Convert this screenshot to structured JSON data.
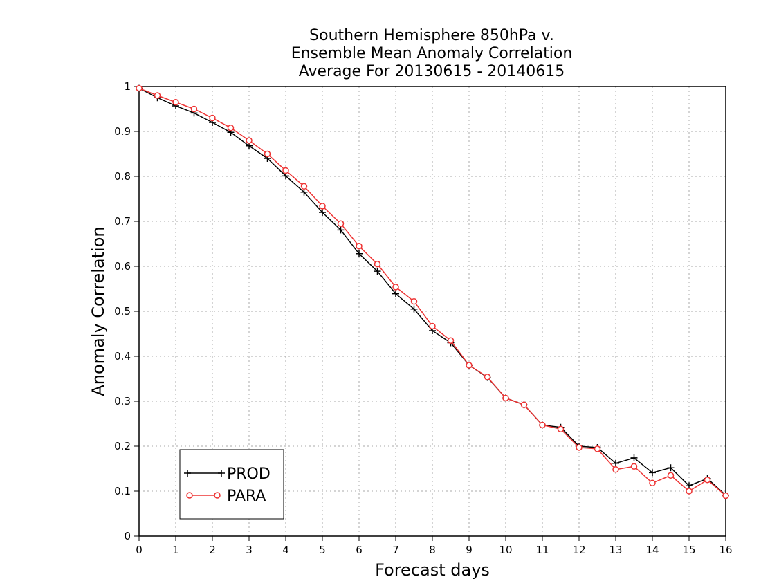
{
  "chart_data": {
    "type": "line",
    "title_lines": [
      "Southern Hemisphere 850hPa v.",
      "Ensemble Mean Anomaly Correlation",
      "Average For 20130615 - 20140615"
    ],
    "xlabel": "Forecast days",
    "ylabel": "Anomaly Correlation",
    "xlim": [
      0,
      16
    ],
    "ylim": [
      0,
      1
    ],
    "xticks": [
      0,
      1,
      2,
      3,
      4,
      5,
      6,
      7,
      8,
      9,
      10,
      11,
      12,
      13,
      14,
      15,
      16
    ],
    "yticks": [
      0,
      0.1,
      0.2,
      0.3,
      0.4,
      0.5,
      0.6,
      0.7,
      0.8,
      0.9,
      1
    ],
    "ytick_labels": [
      "0",
      "0.1",
      "0.2",
      "0.3",
      "0.4",
      "0.5",
      "0.6",
      "0.7",
      "0.8",
      "0.9",
      "1"
    ],
    "grid": true,
    "legend_position": "bottom-left",
    "x": [
      0,
      0.5,
      1,
      1.5,
      2,
      2.5,
      3,
      3.5,
      4,
      4.5,
      5,
      5.5,
      6,
      6.5,
      7,
      7.5,
      8,
      8.5,
      9,
      9.5,
      10,
      10.5,
      11,
      11.5,
      12,
      12.5,
      13,
      13.5,
      14,
      14.5,
      15,
      15.5,
      16
    ],
    "series": [
      {
        "name": "PROD",
        "color": "#000000",
        "marker": "plus",
        "values": [
          0.996,
          0.975,
          0.957,
          0.941,
          0.92,
          0.898,
          0.868,
          0.84,
          0.801,
          0.765,
          0.72,
          0.681,
          0.628,
          0.589,
          0.539,
          0.505,
          0.457,
          0.43,
          0.38,
          0.353,
          0.307,
          0.292,
          0.247,
          0.242,
          0.2,
          0.197,
          0.162,
          0.174,
          0.141,
          0.152,
          0.112,
          0.128,
          0.091
        ]
      },
      {
        "name": "PARA",
        "color": "#ee3333",
        "marker": "circle",
        "values": [
          0.996,
          0.98,
          0.965,
          0.95,
          0.93,
          0.908,
          0.88,
          0.85,
          0.813,
          0.778,
          0.734,
          0.695,
          0.645,
          0.605,
          0.554,
          0.522,
          0.467,
          0.435,
          0.38,
          0.354,
          0.307,
          0.292,
          0.247,
          0.238,
          0.197,
          0.194,
          0.148,
          0.155,
          0.118,
          0.135,
          0.1,
          0.125,
          0.09
        ]
      }
    ]
  }
}
